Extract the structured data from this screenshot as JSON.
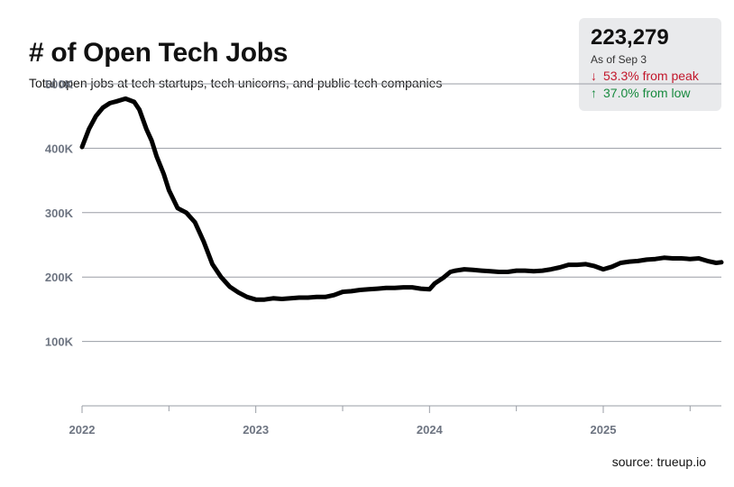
{
  "header": {
    "title": "# of Open Tech Jobs",
    "subtitle": "Total open jobs at tech startups, tech unicorns, and public tech companies"
  },
  "stat": {
    "value": "223,279",
    "as_of": "As of Sep 3",
    "from_peak_arrow": "↓",
    "from_peak": "53.3% from peak",
    "from_low_arrow": "↑",
    "from_low": "37.0% from low",
    "down_color": "#c2172b",
    "up_color": "#178a3e"
  },
  "source": "source: trueup.io",
  "chart_data": {
    "type": "line",
    "title": "# of Open Tech Jobs",
    "xlabel": "",
    "ylabel": "",
    "x_tick_labels": [
      "2022",
      "2023",
      "2024",
      "2025"
    ],
    "x_ticks": [
      2022,
      2023,
      2024,
      2025
    ],
    "xlim": [
      2022.0,
      2025.68
    ],
    "y_tick_labels": [
      "100K",
      "200K",
      "300K",
      "400K",
      "500K"
    ],
    "y_ticks": [
      100000,
      200000,
      300000,
      400000,
      500000
    ],
    "ylim": [
      0,
      500000
    ],
    "grid": "horizontal",
    "line_color": "#000000",
    "series": [
      {
        "x": [
          2022.0,
          2022.04,
          2022.08,
          2022.12,
          2022.16,
          2022.2,
          2022.25,
          2022.3,
          2022.33,
          2022.37,
          2022.4,
          2022.43,
          2022.47,
          2022.5,
          2022.55,
          2022.6,
          2022.65,
          2022.7,
          2022.75,
          2022.8,
          2022.85,
          2022.9,
          2022.95,
          2023.0,
          2023.05,
          2023.1,
          2023.15,
          2023.2,
          2023.25,
          2023.3,
          2023.35,
          2023.4,
          2023.45,
          2023.5,
          2023.55,
          2023.6,
          2023.65,
          2023.7,
          2023.75,
          2023.8,
          2023.85,
          2023.9,
          2023.95,
          2024.0,
          2024.03,
          2024.08,
          2024.12,
          2024.15,
          2024.2,
          2024.25,
          2024.3,
          2024.35,
          2024.4,
          2024.45,
          2024.5,
          2024.55,
          2024.6,
          2024.65,
          2024.7,
          2024.75,
          2024.8,
          2024.85,
          2024.9,
          2024.95,
          2025.0,
          2025.05,
          2025.1,
          2025.15,
          2025.2,
          2025.25,
          2025.3,
          2025.35,
          2025.4,
          2025.45,
          2025.5,
          2025.55,
          2025.6,
          2025.65,
          2025.68
        ],
        "values": [
          402000,
          430000,
          450000,
          463000,
          470000,
          473000,
          477000,
          472000,
          460000,
          430000,
          412000,
          387000,
          360000,
          335000,
          307000,
          300000,
          285000,
          255000,
          220000,
          200000,
          185000,
          176000,
          169000,
          165000,
          165000,
          167000,
          166000,
          167000,
          168000,
          168000,
          169000,
          169000,
          172000,
          177000,
          178000,
          180000,
          181000,
          182000,
          183000,
          183000,
          184000,
          184000,
          182000,
          181000,
          190000,
          199000,
          208000,
          210000,
          212000,
          211000,
          210000,
          209000,
          208000,
          208000,
          210000,
          210000,
          209000,
          210000,
          212000,
          215000,
          219000,
          219000,
          220000,
          217000,
          212000,
          216000,
          222000,
          224000,
          225000,
          227000,
          228000,
          230000,
          229000,
          229000,
          228000,
          229000,
          225000,
          222000,
          223000
        ]
      }
    ]
  }
}
